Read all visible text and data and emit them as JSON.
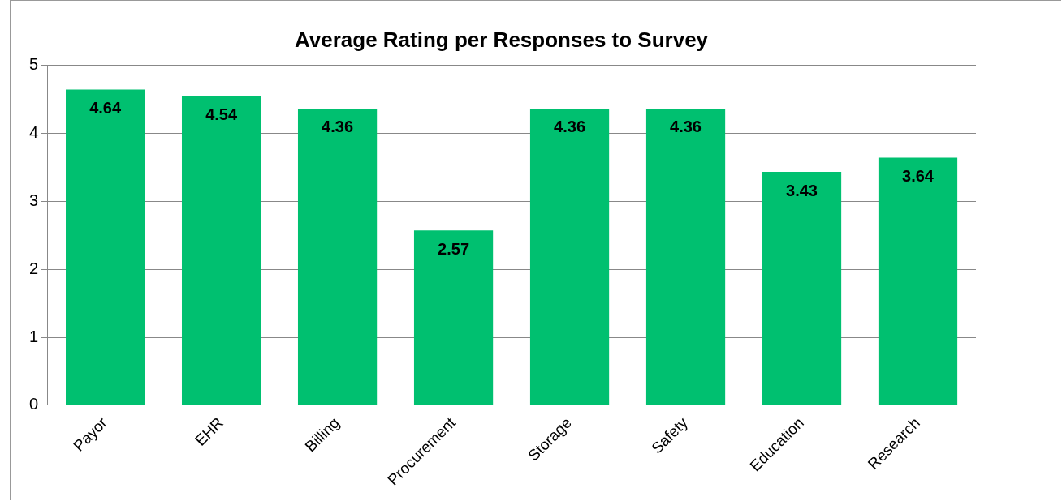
{
  "chart_data": {
    "type": "bar",
    "title": "Average Rating per Responses to Survey",
    "categories": [
      "Payor",
      "EHR",
      "Billing",
      "Procurement",
      "Storage",
      "Safety",
      "Education",
      "Research"
    ],
    "values": [
      4.64,
      4.54,
      4.36,
      2.57,
      4.36,
      4.36,
      3.43,
      3.64
    ],
    "color": "#00c070",
    "ylim": [
      0,
      5
    ],
    "yticks": [
      0,
      1,
      2,
      3,
      4,
      5
    ],
    "grid": "y",
    "data_labels": true,
    "legend": false
  }
}
